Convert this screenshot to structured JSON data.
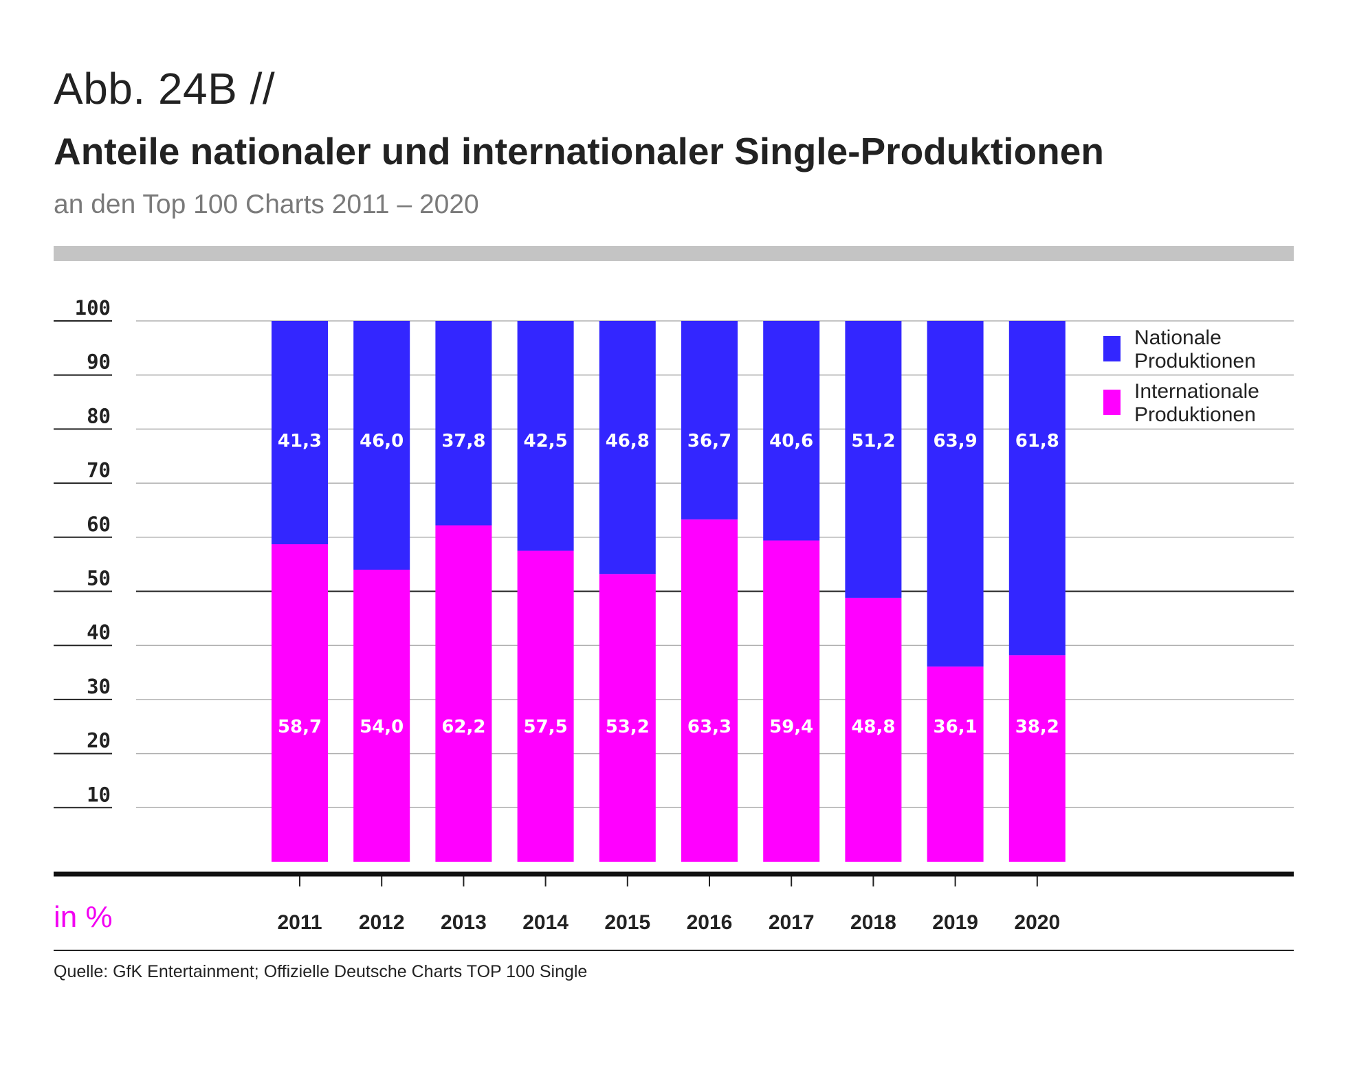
{
  "figure_label": "Abb. 24B //",
  "title": "Anteile nationaler und internationaler Single-Produktionen",
  "subtitle": "an den Top 100 Charts 2011 – 2020",
  "unit_label": "in %",
  "source": "Quelle: GfK Entertainment; Offizielle Deutsche Charts TOP 100 Single",
  "colors": {
    "nationale": "#3326ff",
    "internationale": "#ff00ff",
    "band": "#c4c4c4",
    "unit": "#f200f2"
  },
  "legend": [
    {
      "label_line1": "Nationale",
      "label_line2": "Produktionen",
      "color": "#3326ff"
    },
    {
      "label_line1": "Internationale",
      "label_line2": "Produktionen",
      "color": "#ff00ff"
    }
  ],
  "chart_data": {
    "type": "bar",
    "stacked": true,
    "categories": [
      "2011",
      "2012",
      "2013",
      "2014",
      "2015",
      "2016",
      "2017",
      "2018",
      "2019",
      "2020"
    ],
    "series": [
      {
        "name": "Internationale Produktionen",
        "color": "#ff00ff",
        "values": [
          58.7,
          54.0,
          62.2,
          57.5,
          53.2,
          63.3,
          59.4,
          48.8,
          36.1,
          38.2
        ],
        "labels": [
          "58,7",
          "54,0",
          "62,2",
          "57,5",
          "53,2",
          "63,3",
          "59,4",
          "48,8",
          "36,1",
          "38,2"
        ]
      },
      {
        "name": "Nationale Produktionen",
        "color": "#3326ff",
        "values": [
          41.3,
          46.0,
          37.8,
          42.5,
          46.8,
          36.7,
          40.6,
          51.2,
          63.9,
          61.8
        ],
        "labels": [
          "41,3",
          "46,0",
          "37,8",
          "42,5",
          "46,8",
          "36,7",
          "40,6",
          "51,2",
          "63,9",
          "61,8"
        ]
      }
    ],
    "yticks": [
      "10",
      "20",
      "30",
      "40",
      "50",
      "60",
      "70",
      "80",
      "90",
      "100"
    ],
    "ylim": [
      0,
      100
    ],
    "grid": true,
    "legend_position": "right"
  }
}
